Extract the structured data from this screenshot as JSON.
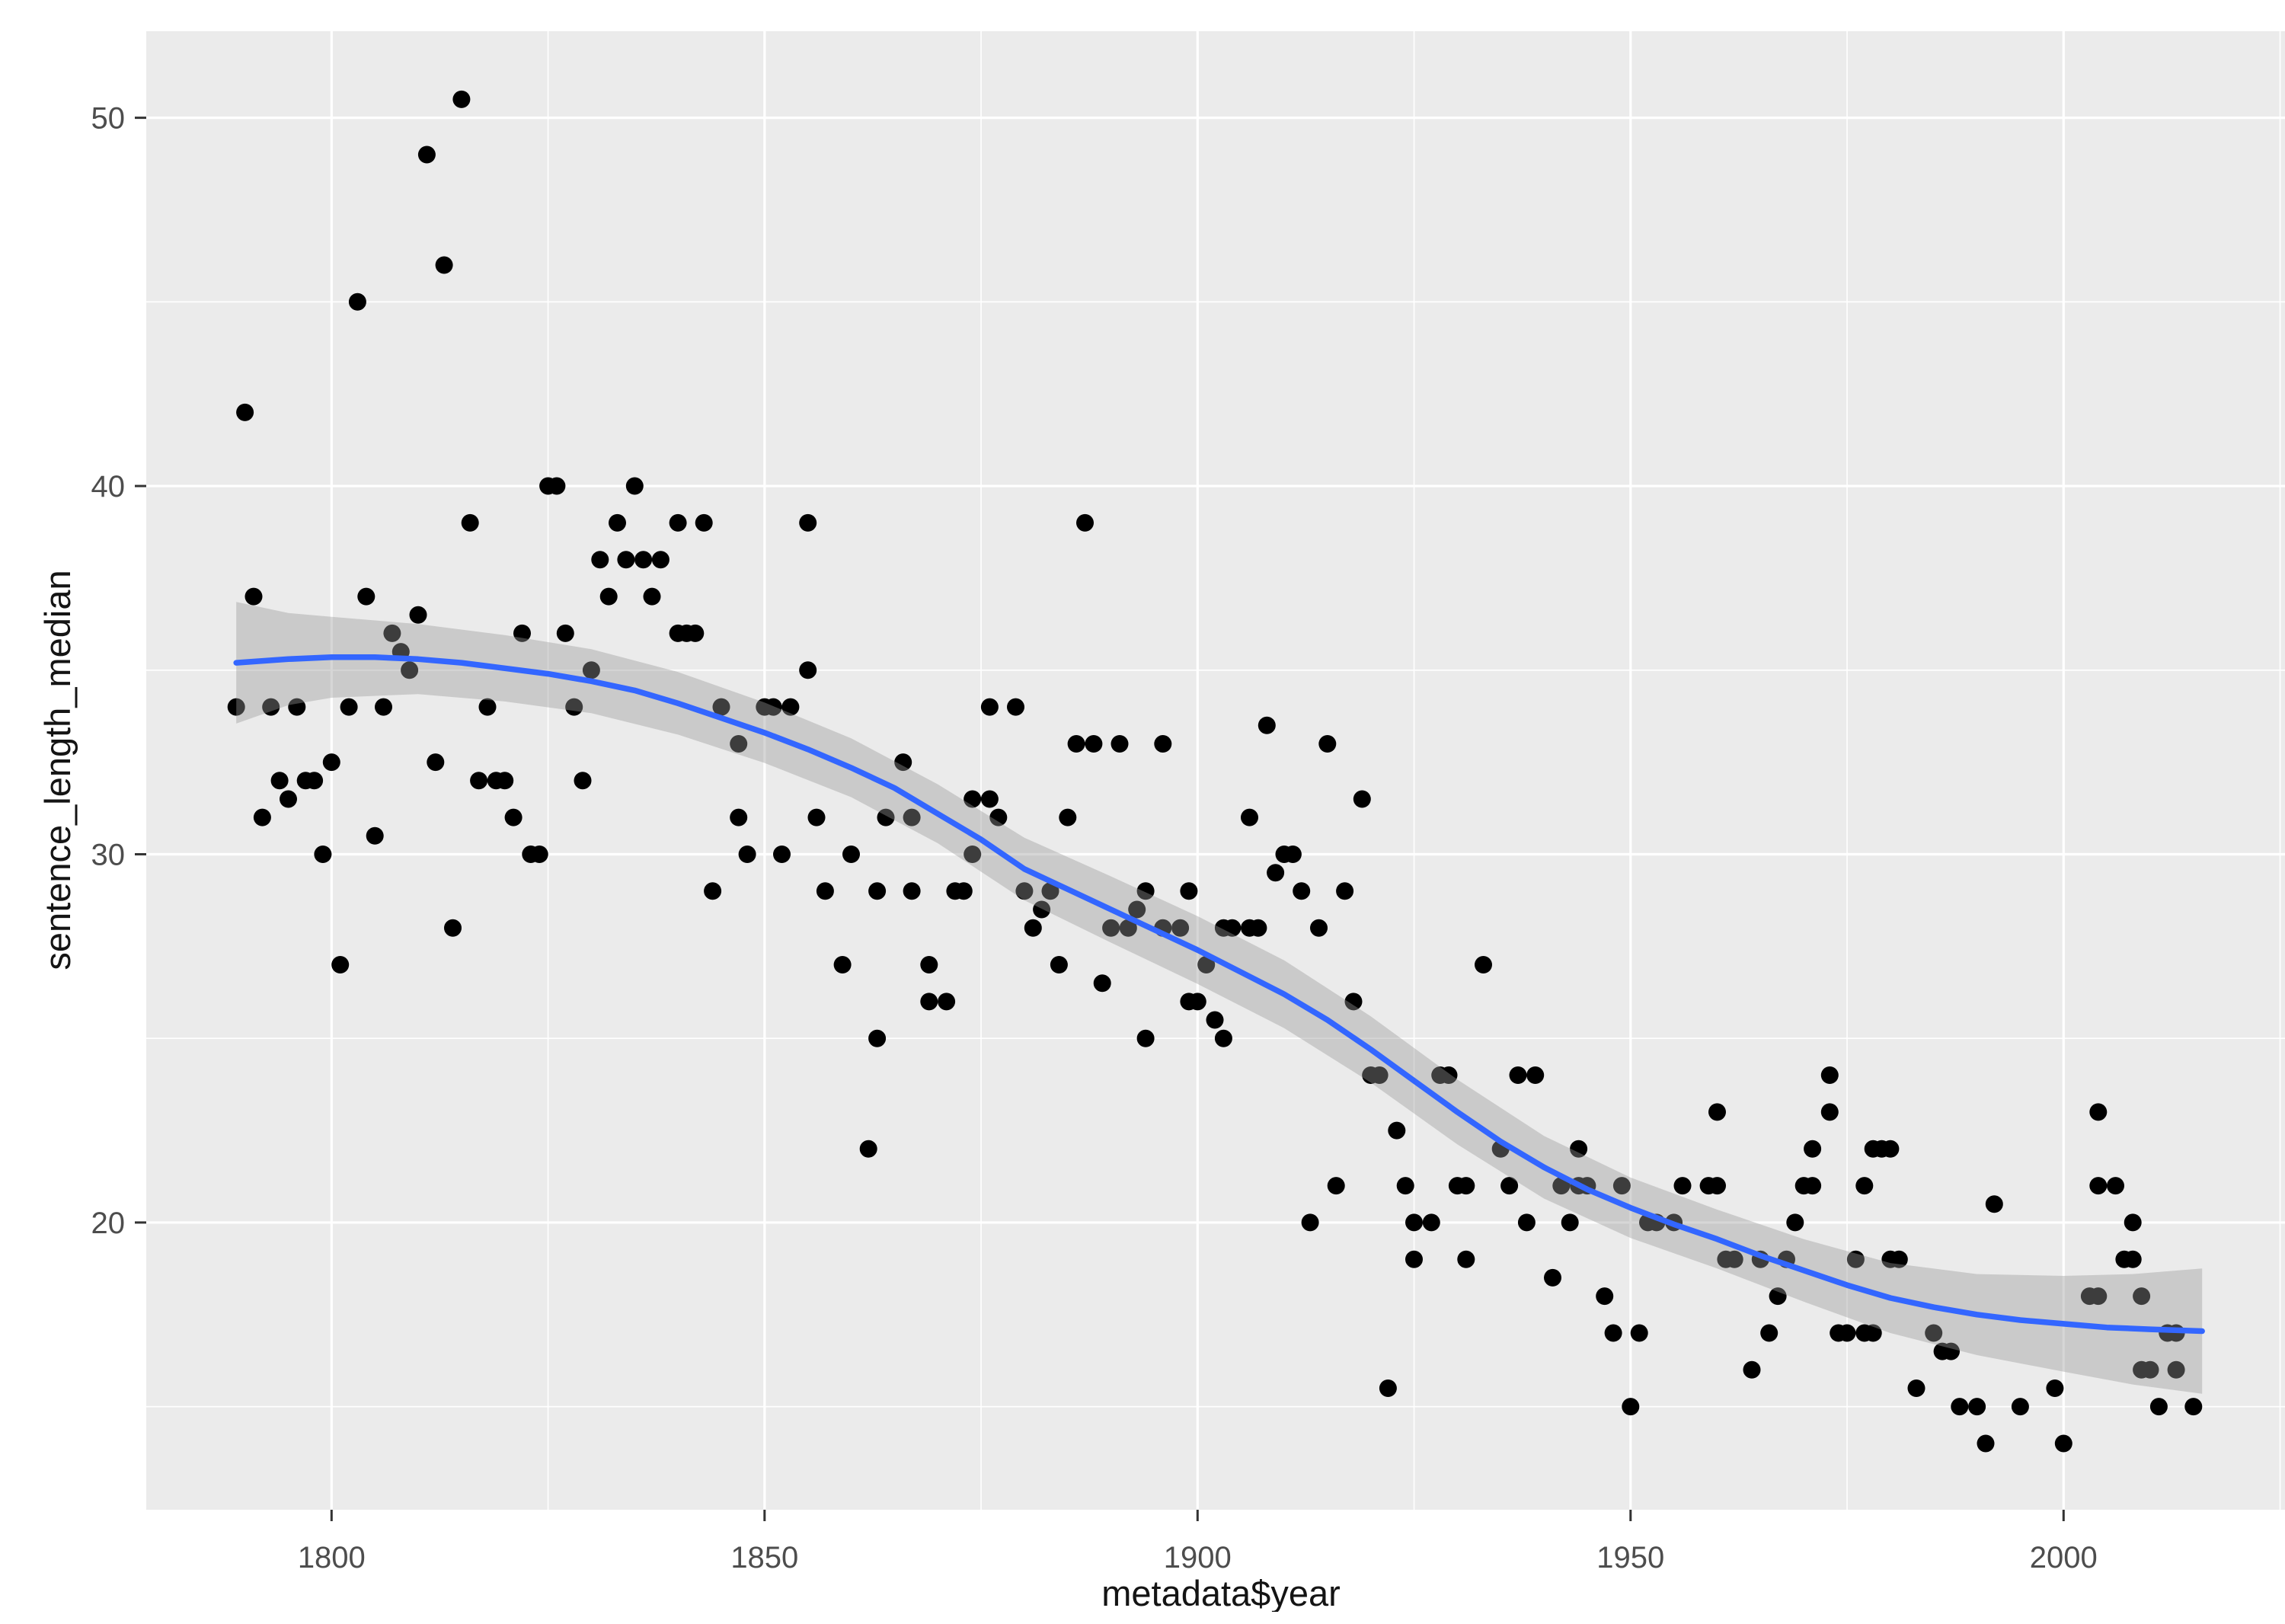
{
  "chart_data": {
    "type": "scatter",
    "title": "",
    "xlabel": "metadata$year",
    "ylabel": "sentence_length_median",
    "x_major_ticks": [
      1800,
      1850,
      1900,
      1950,
      2000
    ],
    "x_minor_ticks": [
      1825,
      1875,
      1925,
      1975,
      2025
    ],
    "y_major_ticks": [
      20,
      30,
      40,
      50
    ],
    "y_minor_ticks": [
      15,
      25,
      35,
      45
    ],
    "xlim": [
      1778.6,
      2026.8
    ],
    "ylim": [
      12.2,
      52.35
    ],
    "grid": "on",
    "legend": "none",
    "colors": {
      "panel_bg": "#EBEBEB",
      "grid": "#FFFFFF",
      "point": "#000000",
      "smooth_line": "#3366FF",
      "band_fill": "#999999",
      "band_opacity": 0.4,
      "tick_text": "#4d4d4d",
      "axis_title_text": "#141414",
      "tick_mark": "#333333"
    },
    "points": [
      [
        1789,
        34
      ],
      [
        1790,
        42
      ],
      [
        1791,
        37
      ],
      [
        1792,
        31
      ],
      [
        1793,
        34
      ],
      [
        1794,
        32
      ],
      [
        1795,
        31.5
      ],
      [
        1796,
        34
      ],
      [
        1797,
        32
      ],
      [
        1798,
        32
      ],
      [
        1799,
        30
      ],
      [
        1800,
        32.5
      ],
      [
        1801,
        27
      ],
      [
        1802,
        34
      ],
      [
        1803,
        45
      ],
      [
        1804,
        37
      ],
      [
        1805,
        30.5
      ],
      [
        1806,
        34
      ],
      [
        1807,
        36
      ],
      [
        1808,
        35.5
      ],
      [
        1809,
        35
      ],
      [
        1810,
        36.5
      ],
      [
        1811,
        49
      ],
      [
        1812,
        32.5
      ],
      [
        1813,
        46
      ],
      [
        1814,
        28
      ],
      [
        1815,
        50.5
      ],
      [
        1816,
        39
      ],
      [
        1817,
        32
      ],
      [
        1818,
        34
      ],
      [
        1819,
        32
      ],
      [
        1820,
        32
      ],
      [
        1821,
        31
      ],
      [
        1822,
        36
      ],
      [
        1823,
        30
      ],
      [
        1824,
        30
      ],
      [
        1825,
        40
      ],
      [
        1826,
        40
      ],
      [
        1827,
        36
      ],
      [
        1828,
        34
      ],
      [
        1829,
        32
      ],
      [
        1830,
        35
      ],
      [
        1831,
        38
      ],
      [
        1832,
        37
      ],
      [
        1833,
        39
      ],
      [
        1834,
        38
      ],
      [
        1835,
        40
      ],
      [
        1836,
        38
      ],
      [
        1837,
        37
      ],
      [
        1838,
        38
      ],
      [
        1840,
        39
      ],
      [
        1840,
        36
      ],
      [
        1841,
        36
      ],
      [
        1842,
        36
      ],
      [
        1843,
        39
      ],
      [
        1844,
        29
      ],
      [
        1845,
        34
      ],
      [
        1847,
        33
      ],
      [
        1847,
        31
      ],
      [
        1848,
        30
      ],
      [
        1850,
        34
      ],
      [
        1851,
        34
      ],
      [
        1852,
        30
      ],
      [
        1853,
        34
      ],
      [
        1855,
        39
      ],
      [
        1855,
        35
      ],
      [
        1856,
        31
      ],
      [
        1857,
        29
      ],
      [
        1859,
        27
      ],
      [
        1860,
        30
      ],
      [
        1862,
        22
      ],
      [
        1863,
        25
      ],
      [
        1863,
        29
      ],
      [
        1864,
        31
      ],
      [
        1866,
        32.5
      ],
      [
        1867,
        31
      ],
      [
        1867,
        29
      ],
      [
        1869,
        27
      ],
      [
        1869,
        26
      ],
      [
        1871,
        26
      ],
      [
        1872,
        29
      ],
      [
        1873,
        29
      ],
      [
        1874,
        30
      ],
      [
        1874,
        31.5
      ],
      [
        1876,
        31.5
      ],
      [
        1876,
        34
      ],
      [
        1877,
        31
      ],
      [
        1879,
        34
      ],
      [
        1880,
        29
      ],
      [
        1881,
        28
      ],
      [
        1882,
        28.5
      ],
      [
        1883,
        29
      ],
      [
        1884,
        27
      ],
      [
        1885,
        31
      ],
      [
        1886,
        33
      ],
      [
        1887,
        39
      ],
      [
        1888,
        33
      ],
      [
        1889,
        26.5
      ],
      [
        1890,
        28
      ],
      [
        1891,
        33
      ],
      [
        1892,
        28
      ],
      [
        1893,
        28.5
      ],
      [
        1894,
        29
      ],
      [
        1894,
        25
      ],
      [
        1896,
        33
      ],
      [
        1896,
        28
      ],
      [
        1898,
        28
      ],
      [
        1899,
        29
      ],
      [
        1899,
        26
      ],
      [
        1900,
        26
      ],
      [
        1901,
        27
      ],
      [
        1902,
        25.5
      ],
      [
        1903,
        25
      ],
      [
        1903,
        28
      ],
      [
        1904,
        28
      ],
      [
        1906,
        28
      ],
      [
        1906,
        31
      ],
      [
        1907,
        28
      ],
      [
        1908,
        33.5
      ],
      [
        1909,
        29.5
      ],
      [
        1910,
        30
      ],
      [
        1911,
        30
      ],
      [
        1912,
        29
      ],
      [
        1913,
        20
      ],
      [
        1914,
        28
      ],
      [
        1915,
        33
      ],
      [
        1916,
        21
      ],
      [
        1917,
        29
      ],
      [
        1918,
        26
      ],
      [
        1919,
        31.5
      ],
      [
        1920,
        24
      ],
      [
        1921,
        24
      ],
      [
        1922,
        15.5
      ],
      [
        1923,
        22.5
      ],
      [
        1924,
        21
      ],
      [
        1925,
        20
      ],
      [
        1925,
        19
      ],
      [
        1927,
        20
      ],
      [
        1928,
        24
      ],
      [
        1929,
        24
      ],
      [
        1930,
        21
      ],
      [
        1931,
        21
      ],
      [
        1931,
        19
      ],
      [
        1933,
        27
      ],
      [
        1935,
        22
      ],
      [
        1936,
        21
      ],
      [
        1937,
        24
      ],
      [
        1938,
        20
      ],
      [
        1939,
        24
      ],
      [
        1941,
        18.5
      ],
      [
        1942,
        21
      ],
      [
        1943,
        20
      ],
      [
        1944,
        22
      ],
      [
        1944,
        21
      ],
      [
        1945,
        21
      ],
      [
        1947,
        18
      ],
      [
        1948,
        17
      ],
      [
        1949,
        21
      ],
      [
        1950,
        15
      ],
      [
        1951,
        17
      ],
      [
        1952,
        20
      ],
      [
        1953,
        20
      ],
      [
        1955,
        20
      ],
      [
        1956,
        21
      ],
      [
        1959,
        21
      ],
      [
        1960,
        21
      ],
      [
        1960,
        23
      ],
      [
        1961,
        19
      ],
      [
        1962,
        19
      ],
      [
        1964,
        16
      ],
      [
        1965,
        19
      ],
      [
        1966,
        17
      ],
      [
        1967,
        18
      ],
      [
        1968,
        19
      ],
      [
        1969,
        20
      ],
      [
        1970,
        21
      ],
      [
        1971,
        21
      ],
      [
        1971,
        22
      ],
      [
        1973,
        24
      ],
      [
        1973,
        23
      ],
      [
        1974,
        17
      ],
      [
        1975,
        17
      ],
      [
        1976,
        19
      ],
      [
        1977,
        21
      ],
      [
        1977,
        17
      ],
      [
        1978,
        22
      ],
      [
        1978,
        17
      ],
      [
        1979,
        22
      ],
      [
        1980,
        22
      ],
      [
        1980,
        19
      ],
      [
        1981,
        19
      ],
      [
        1983,
        15.5
      ],
      [
        1985,
        17
      ],
      [
        1986,
        16.5
      ],
      [
        1987,
        16.5
      ],
      [
        1988,
        15
      ],
      [
        1990,
        15
      ],
      [
        1991,
        14
      ],
      [
        1992,
        20.5
      ],
      [
        1995,
        15
      ],
      [
        1999,
        15.5
      ],
      [
        2000,
        14
      ],
      [
        2003,
        18
      ],
      [
        2004,
        18
      ],
      [
        2004,
        23
      ],
      [
        2004,
        21
      ],
      [
        2006,
        21
      ],
      [
        2007,
        19
      ],
      [
        2008,
        19
      ],
      [
        2008,
        20
      ],
      [
        2009,
        18
      ],
      [
        2009,
        16
      ],
      [
        2010,
        16
      ],
      [
        2011,
        15
      ],
      [
        2012,
        17
      ],
      [
        2013,
        17
      ],
      [
        2013,
        16
      ],
      [
        2015,
        15
      ]
    ],
    "smooth_line": [
      [
        1789,
        35.2
      ],
      [
        1795,
        35.3
      ],
      [
        1800,
        35.35
      ],
      [
        1805,
        35.35
      ],
      [
        1810,
        35.3
      ],
      [
        1815,
        35.2
      ],
      [
        1820,
        35.05
      ],
      [
        1825,
        34.9
      ],
      [
        1830,
        34.7
      ],
      [
        1835,
        34.45
      ],
      [
        1840,
        34.1
      ],
      [
        1845,
        33.7
      ],
      [
        1850,
        33.3
      ],
      [
        1855,
        32.85
      ],
      [
        1860,
        32.35
      ],
      [
        1865,
        31.8
      ],
      [
        1870,
        31.1
      ],
      [
        1875,
        30.4
      ],
      [
        1880,
        29.6
      ],
      [
        1885,
        29.05
      ],
      [
        1890,
        28.5
      ],
      [
        1895,
        27.95
      ],
      [
        1900,
        27.4
      ],
      [
        1905,
        26.8
      ],
      [
        1910,
        26.2
      ],
      [
        1915,
        25.5
      ],
      [
        1920,
        24.7
      ],
      [
        1925,
        23.85
      ],
      [
        1930,
        23.0
      ],
      [
        1935,
        22.2
      ],
      [
        1940,
        21.5
      ],
      [
        1945,
        20.9
      ],
      [
        1950,
        20.4
      ],
      [
        1955,
        19.95
      ],
      [
        1960,
        19.55
      ],
      [
        1965,
        19.1
      ],
      [
        1970,
        18.7
      ],
      [
        1975,
        18.3
      ],
      [
        1980,
        17.95
      ],
      [
        1985,
        17.7
      ],
      [
        1990,
        17.5
      ],
      [
        1995,
        17.35
      ],
      [
        2000,
        17.25
      ],
      [
        2005,
        17.15
      ],
      [
        2010,
        17.1
      ],
      [
        2016,
        17.05
      ]
    ],
    "confidence_band": [
      [
        1789,
        33.55,
        36.85
      ],
      [
        1795,
        34.05,
        36.55
      ],
      [
        1800,
        34.25,
        36.45
      ],
      [
        1810,
        34.35,
        36.25
      ],
      [
        1820,
        34.15,
        35.95
      ],
      [
        1830,
        33.83,
        35.57
      ],
      [
        1840,
        33.25,
        34.95
      ],
      [
        1850,
        32.48,
        34.12
      ],
      [
        1860,
        31.55,
        33.15
      ],
      [
        1870,
        30.3,
        31.9
      ],
      [
        1880,
        28.75,
        30.45
      ],
      [
        1890,
        27.6,
        29.4
      ],
      [
        1900,
        26.48,
        28.32
      ],
      [
        1910,
        25.28,
        27.12
      ],
      [
        1920,
        23.8,
        25.6
      ],
      [
        1930,
        22.12,
        23.88
      ],
      [
        1940,
        20.65,
        22.35
      ],
      [
        1950,
        19.58,
        21.22
      ],
      [
        1960,
        18.75,
        20.35
      ],
      [
        1970,
        17.85,
        19.55
      ],
      [
        1980,
        17.0,
        18.9
      ],
      [
        1990,
        16.4,
        18.6
      ],
      [
        2000,
        15.95,
        18.55
      ],
      [
        2008,
        15.6,
        18.6
      ],
      [
        2016,
        15.35,
        18.75
      ]
    ]
  }
}
